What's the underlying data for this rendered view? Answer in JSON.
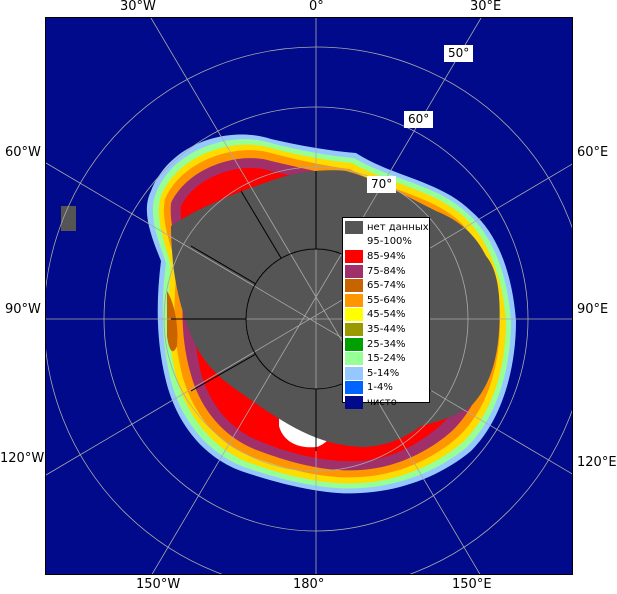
{
  "map": {
    "lon_labels": {
      "top_30w": "30°W",
      "top_0": "0°",
      "top_30e": "30°E",
      "left_60w": "60°W",
      "left_90w": "90°W",
      "left_120w": "120°W",
      "right_60e": "60°E",
      "right_90e": "90°E",
      "right_120e": "120°E",
      "bottom_150w": "150°W",
      "bottom_180": "180°",
      "bottom_150e": "150°E"
    },
    "lat_labels": {
      "lat50": "50°",
      "lat60": "60°",
      "lat70": "70°"
    },
    "colors": {
      "ocean": "#000a8a",
      "no_data": "#555555",
      "grid": "#aaaaaa"
    }
  },
  "legend": {
    "items": [
      {
        "label": "нет данных",
        "color": "#555555"
      },
      {
        "label": "95-100%",
        "color": "#ffffff"
      },
      {
        "label": "85-94%",
        "color": "#ff0000"
      },
      {
        "label": "75-84%",
        "color": "#a0306a"
      },
      {
        "label": "65-74%",
        "color": "#c86400"
      },
      {
        "label": "55-64%",
        "color": "#ff9600"
      },
      {
        "label": "45-54%",
        "color": "#ffff00"
      },
      {
        "label": "35-44%",
        "color": "#9a9a00"
      },
      {
        "label": "25-34%",
        "color": "#00a000"
      },
      {
        "label": "15-24%",
        "color": "#96ff96"
      },
      {
        "label": "5-14%",
        "color": "#96c8ff"
      },
      {
        "label": "1-4%",
        "color": "#0064ff"
      },
      {
        "label": "чисто",
        "color": "#000a8a"
      }
    ]
  }
}
